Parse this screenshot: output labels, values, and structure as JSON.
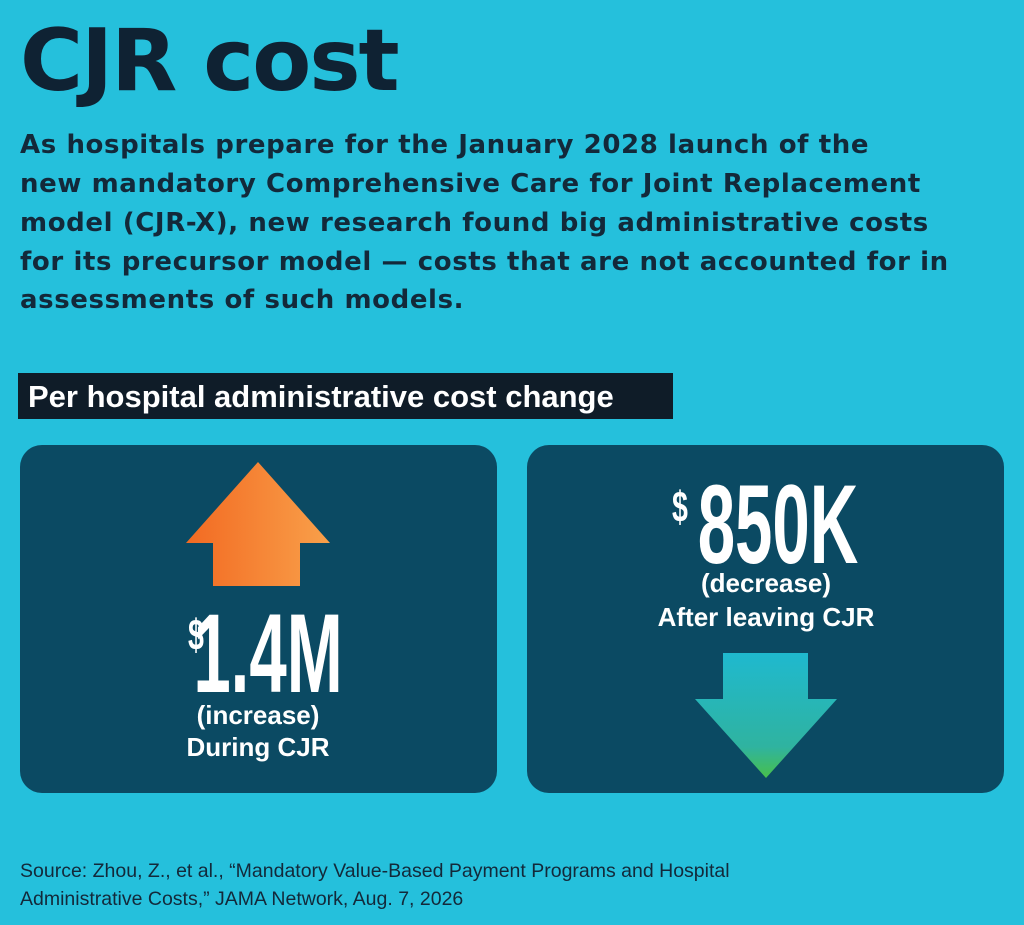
{
  "title": "CJR cost",
  "intro": [
    "As hospitals prepare for the January 2028 launch of the",
    "new mandatory Comprehensive Care for Joint Replacement",
    "model (CJR-X), new research found big administrative costs",
    "for its precursor model — costs that are not accounted for in",
    "assessments of such models."
  ],
  "section_heading": "Per hospital administrative cost change",
  "cards": [
    {
      "currency": "$",
      "amount": "1.4M",
      "change": "(increase)",
      "period": "During CJR"
    },
    {
      "currency": "$",
      "amount": "850K",
      "change": "(decrease)",
      "period": "After leaving CJR"
    }
  ],
  "source": [
    "Source: Zhou, Z., et al., “Mandatory Value-Based Payment Programs and Hospital",
    "Administrative Costs,” JAMA Network, Aug. 7, 2026"
  ]
}
